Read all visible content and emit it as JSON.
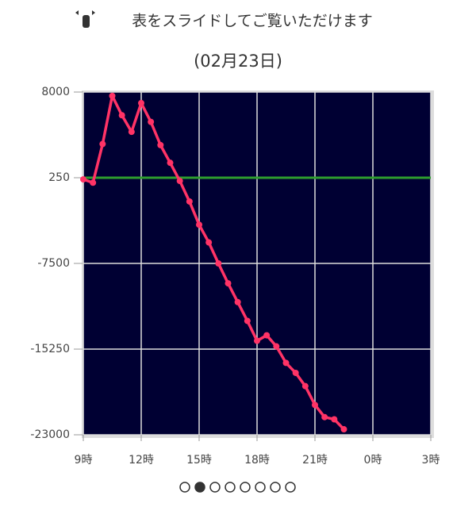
{
  "header": {
    "text": "表をスライドしてご覧いただけます"
  },
  "chart_data": {
    "type": "line",
    "title": "(02月23日)",
    "x": [
      9,
      9.5,
      10,
      10.5,
      11,
      11.5,
      12,
      12.5,
      13,
      13.5,
      14,
      14.5,
      15,
      15.5,
      16,
      16.5,
      17,
      17.5,
      18,
      18.5,
      19,
      19.5,
      20,
      20.5,
      21,
      21.5,
      22,
      22.5
    ],
    "series": [
      {
        "color": "#ff3366",
        "values": [
          100,
          -200,
          3300,
          7650,
          5900,
          4400,
          7000,
          5300,
          3200,
          1600,
          -40,
          -1900,
          -4000,
          -5600,
          -7500,
          -9300,
          -11000,
          -12700,
          -14500,
          -14000,
          -15000,
          -16500,
          -17400,
          -18600,
          -20300,
          -21400,
          -21600,
          -22500
        ]
      }
    ],
    "xlim": [
      9,
      27
    ],
    "xticks": [
      {
        "value": 9,
        "label": "9時"
      },
      {
        "value": 12,
        "label": "12時"
      },
      {
        "value": 15,
        "label": "15時"
      },
      {
        "value": 18,
        "label": "18時"
      },
      {
        "value": 21,
        "label": "21時"
      },
      {
        "value": 24,
        "label": "0時"
      },
      {
        "value": 27,
        "label": "3時"
      }
    ],
    "ylim": [
      -23000,
      8000
    ],
    "yticks": [
      -23000,
      -15250,
      -7500,
      250,
      8000
    ],
    "reference_line": {
      "value": 250,
      "color": "#2e9e2e"
    },
    "grid": true,
    "background": "#000033"
  }
}
